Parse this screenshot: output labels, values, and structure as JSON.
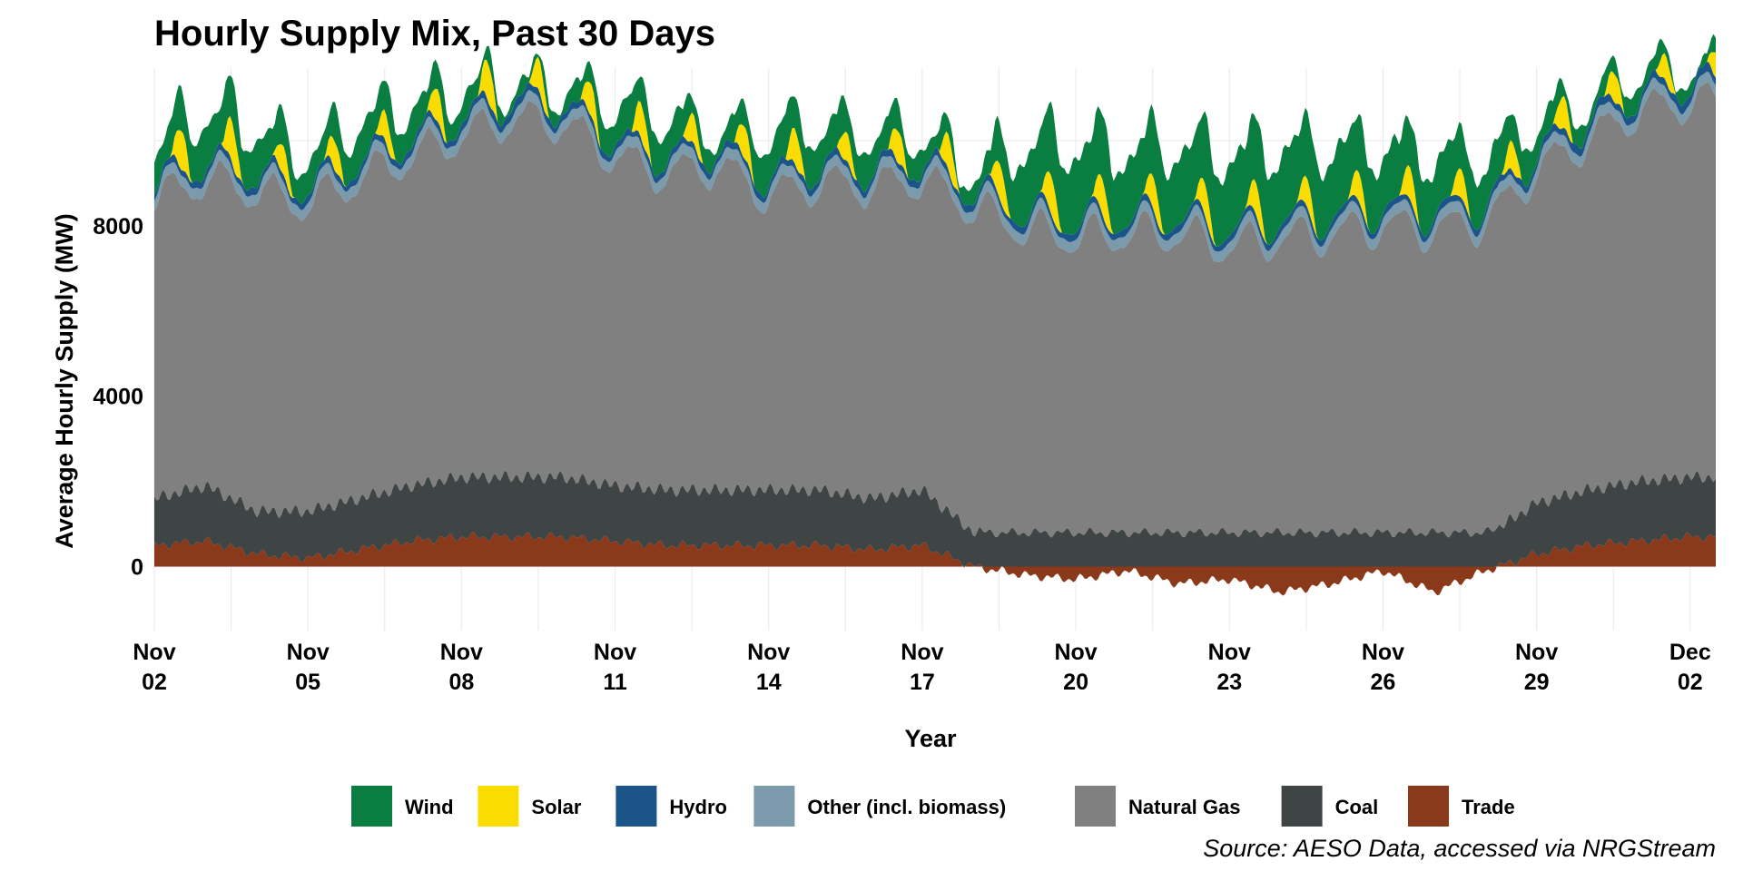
{
  "chart_data": {
    "type": "area",
    "stacked": true,
    "title": "Hourly Supply Mix, Past 30 Days",
    "xlabel": "Year",
    "ylabel": "Average Hourly Supply (MW)",
    "caption": "Source: AESO Data, accessed via NRGStream",
    "x_range": [
      "2023-11-02",
      "2023-12-02T12:00"
    ],
    "ylim": [
      -1500,
      11700
    ],
    "y_ticks": [
      0,
      4000,
      8000
    ],
    "y_tick_labels": [
      "0",
      "4000",
      "8000"
    ],
    "x_tick_labels": [
      {
        "value": "2023-11-02",
        "month": "Nov",
        "day": "02"
      },
      {
        "value": "2023-11-05",
        "month": "Nov",
        "day": "05"
      },
      {
        "value": "2023-11-08",
        "month": "Nov",
        "day": "08"
      },
      {
        "value": "2023-11-11",
        "month": "Nov",
        "day": "11"
      },
      {
        "value": "2023-11-14",
        "month": "Nov",
        "day": "14"
      },
      {
        "value": "2023-11-17",
        "month": "Nov",
        "day": "17"
      },
      {
        "value": "2023-11-20",
        "month": "Nov",
        "day": "20"
      },
      {
        "value": "2023-11-23",
        "month": "Nov",
        "day": "23"
      },
      {
        "value": "2023-11-26",
        "month": "Nov",
        "day": "26"
      },
      {
        "value": "2023-11-29",
        "month": "Nov",
        "day": "29"
      },
      {
        "value": "2023-12-02",
        "month": "Dec",
        "day": "02"
      }
    ],
    "grid": true,
    "legend_position": "bottom",
    "stack_order_bottom_to_top": [
      "Coal",
      "Natural Gas",
      "Other (incl. biomass)",
      "Hydro",
      "Solar",
      "Wind"
    ],
    "series": [
      {
        "name": "Wind",
        "color": "#0a7d40",
        "x": [
          "2023-11-02",
          "2023-11-03",
          "2023-11-04",
          "2023-11-05",
          "2023-11-06",
          "2023-11-07",
          "2023-11-08",
          "2023-11-09",
          "2023-11-10",
          "2023-11-11",
          "2023-11-12",
          "2023-11-13",
          "2023-11-14",
          "2023-11-15",
          "2023-11-16",
          "2023-11-17",
          "2023-11-18",
          "2023-11-19",
          "2023-11-20",
          "2023-11-21",
          "2023-11-22",
          "2023-11-23",
          "2023-11-24",
          "2023-11-25",
          "2023-11-26",
          "2023-11-27",
          "2023-11-28",
          "2023-11-29",
          "2023-11-30",
          "2023-12-01",
          "2023-12-02"
        ],
        "values": [
          700,
          1000,
          900,
          600,
          800,
          700,
          500,
          200,
          300,
          700,
          800,
          300,
          900,
          800,
          700,
          500,
          300,
          1400,
          1600,
          1400,
          1500,
          1600,
          1600,
          1500,
          1300,
          1200,
          1000,
          600,
          300,
          400,
          200
        ]
      },
      {
        "name": "Solar",
        "color": "#fadc00",
        "x": [
          "2023-11-02",
          "2023-11-03",
          "2023-11-04",
          "2023-11-05",
          "2023-11-06",
          "2023-11-07",
          "2023-11-08",
          "2023-11-09",
          "2023-11-10",
          "2023-11-11",
          "2023-11-12",
          "2023-11-13",
          "2023-11-14",
          "2023-11-15",
          "2023-11-16",
          "2023-11-17",
          "2023-11-18",
          "2023-11-19",
          "2023-11-20",
          "2023-11-21",
          "2023-11-22",
          "2023-11-23",
          "2023-11-24",
          "2023-11-25",
          "2023-11-26",
          "2023-11-27",
          "2023-11-28",
          "2023-11-29",
          "2023-11-30",
          "2023-12-01",
          "2023-12-02"
        ],
        "values": [
          400,
          800,
          500,
          400,
          500,
          400,
          600,
          600,
          400,
          600,
          500,
          400,
          600,
          500,
          400,
          600,
          500,
          600,
          600,
          500,
          500,
          500,
          500,
          400,
          500,
          500,
          400,
          500,
          500,
          400,
          400
        ]
      },
      {
        "name": "Hydro",
        "color": "#1a5488",
        "x": [
          "2023-11-02",
          "2023-11-03",
          "2023-11-04",
          "2023-11-05",
          "2023-11-06",
          "2023-11-07",
          "2023-11-08",
          "2023-11-09",
          "2023-11-10",
          "2023-11-11",
          "2023-11-12",
          "2023-11-13",
          "2023-11-14",
          "2023-11-15",
          "2023-11-16",
          "2023-11-17",
          "2023-11-18",
          "2023-11-19",
          "2023-11-20",
          "2023-11-21",
          "2023-11-22",
          "2023-11-23",
          "2023-11-24",
          "2023-11-25",
          "2023-11-26",
          "2023-11-27",
          "2023-11-28",
          "2023-11-29",
          "2023-11-30",
          "2023-12-01",
          "2023-12-02"
        ],
        "values": [
          150,
          150,
          150,
          150,
          150,
          150,
          150,
          200,
          150,
          150,
          150,
          150,
          150,
          150,
          150,
          150,
          150,
          150,
          150,
          150,
          150,
          150,
          150,
          150,
          150,
          150,
          150,
          150,
          200,
          150,
          200
        ]
      },
      {
        "name": "Other (incl. biomass)",
        "color": "#7b9aac",
        "x": [
          "2023-11-02",
          "2023-11-03",
          "2023-11-04",
          "2023-11-05",
          "2023-11-06",
          "2023-11-07",
          "2023-11-08",
          "2023-11-09",
          "2023-11-10",
          "2023-11-11",
          "2023-11-12",
          "2023-11-13",
          "2023-11-14",
          "2023-11-15",
          "2023-11-16",
          "2023-11-17",
          "2023-11-18",
          "2023-11-19",
          "2023-11-20",
          "2023-11-21",
          "2023-11-22",
          "2023-11-23",
          "2023-11-24",
          "2023-11-25",
          "2023-11-26",
          "2023-11-27",
          "2023-11-28",
          "2023-11-29",
          "2023-11-30",
          "2023-12-01",
          "2023-12-02"
        ],
        "values": [
          250,
          250,
          250,
          250,
          250,
          250,
          250,
          250,
          250,
          250,
          250,
          250,
          250,
          250,
          250,
          250,
          250,
          250,
          250,
          250,
          250,
          250,
          250,
          250,
          250,
          250,
          250,
          250,
          250,
          250,
          250
        ]
      },
      {
        "name": "Natural Gas",
        "color": "#808080",
        "x": [
          "2023-11-02",
          "2023-11-03",
          "2023-11-04",
          "2023-11-05",
          "2023-11-06",
          "2023-11-07",
          "2023-11-08",
          "2023-11-09",
          "2023-11-10",
          "2023-11-11",
          "2023-11-12",
          "2023-11-13",
          "2023-11-14",
          "2023-11-15",
          "2023-11-16",
          "2023-11-17",
          "2023-11-18",
          "2023-11-19",
          "2023-11-20",
          "2023-11-21",
          "2023-11-22",
          "2023-11-23",
          "2023-11-24",
          "2023-11-25",
          "2023-11-26",
          "2023-11-27",
          "2023-11-28",
          "2023-11-29",
          "2023-11-30",
          "2023-12-01",
          "2023-12-02"
        ],
        "values": [
          7000,
          7200,
          7500,
          7200,
          7500,
          7700,
          8000,
          8400,
          8300,
          7700,
          7400,
          7600,
          6900,
          7200,
          7300,
          7300,
          7600,
          7100,
          6900,
          7000,
          7000,
          6700,
          6900,
          7000,
          7200,
          7100,
          7300,
          7800,
          8200,
          8700,
          8800
        ]
      },
      {
        "name": "Coal",
        "color": "#3f4444",
        "x": [
          "2023-11-02",
          "2023-11-03",
          "2023-11-04",
          "2023-11-05",
          "2023-11-06",
          "2023-11-07",
          "2023-11-08",
          "2023-11-09",
          "2023-11-10",
          "2023-11-11",
          "2023-11-12",
          "2023-11-13",
          "2023-11-14",
          "2023-11-15",
          "2023-11-16",
          "2023-11-17",
          "2023-11-18",
          "2023-11-19",
          "2023-11-20",
          "2023-11-21",
          "2023-11-22",
          "2023-11-23",
          "2023-11-24",
          "2023-11-25",
          "2023-11-26",
          "2023-11-27",
          "2023-11-28",
          "2023-11-29",
          "2023-11-30",
          "2023-12-01",
          "2023-12-02"
        ],
        "values": [
          1100,
          1300,
          1000,
          1100,
          1200,
          1300,
          1400,
          1400,
          1400,
          1300,
          1300,
          1300,
          1300,
          1300,
          1200,
          1300,
          800,
          800,
          800,
          800,
          800,
          800,
          800,
          800,
          800,
          800,
          800,
          1200,
          1300,
          1400,
          1400
        ]
      },
      {
        "name": "Trade",
        "color": "#8a391b",
        "x": [
          "2023-11-02",
          "2023-11-03",
          "2023-11-04",
          "2023-11-05",
          "2023-11-06",
          "2023-11-07",
          "2023-11-08",
          "2023-11-09",
          "2023-11-10",
          "2023-11-11",
          "2023-11-12",
          "2023-11-13",
          "2023-11-14",
          "2023-11-15",
          "2023-11-16",
          "2023-11-17",
          "2023-11-18",
          "2023-11-19",
          "2023-11-20",
          "2023-11-21",
          "2023-11-22",
          "2023-11-23",
          "2023-11-24",
          "2023-11-25",
          "2023-11-26",
          "2023-11-27",
          "2023-11-28",
          "2023-11-29",
          "2023-11-30",
          "2023-12-01",
          "2023-12-02"
        ],
        "values": [
          500,
          600,
          300,
          200,
          400,
          600,
          700,
          700,
          700,
          600,
          500,
          500,
          500,
          500,
          400,
          500,
          0,
          -200,
          -300,
          -100,
          -400,
          -300,
          -600,
          -400,
          -100,
          -600,
          -100,
          300,
          500,
          600,
          700
        ]
      }
    ],
    "legend": [
      {
        "name": "Wind",
        "color": "#0a7d40"
      },
      {
        "name": "Solar",
        "color": "#fadc00"
      },
      {
        "name": "Hydro",
        "color": "#1a5488"
      },
      {
        "name": "Other (incl. biomass)",
        "color": "#7b9aac"
      },
      {
        "name": "Natural Gas",
        "color": "#808080"
      },
      {
        "name": "Coal",
        "color": "#3f4444"
      },
      {
        "name": "Trade",
        "color": "#8a391b"
      }
    ]
  }
}
